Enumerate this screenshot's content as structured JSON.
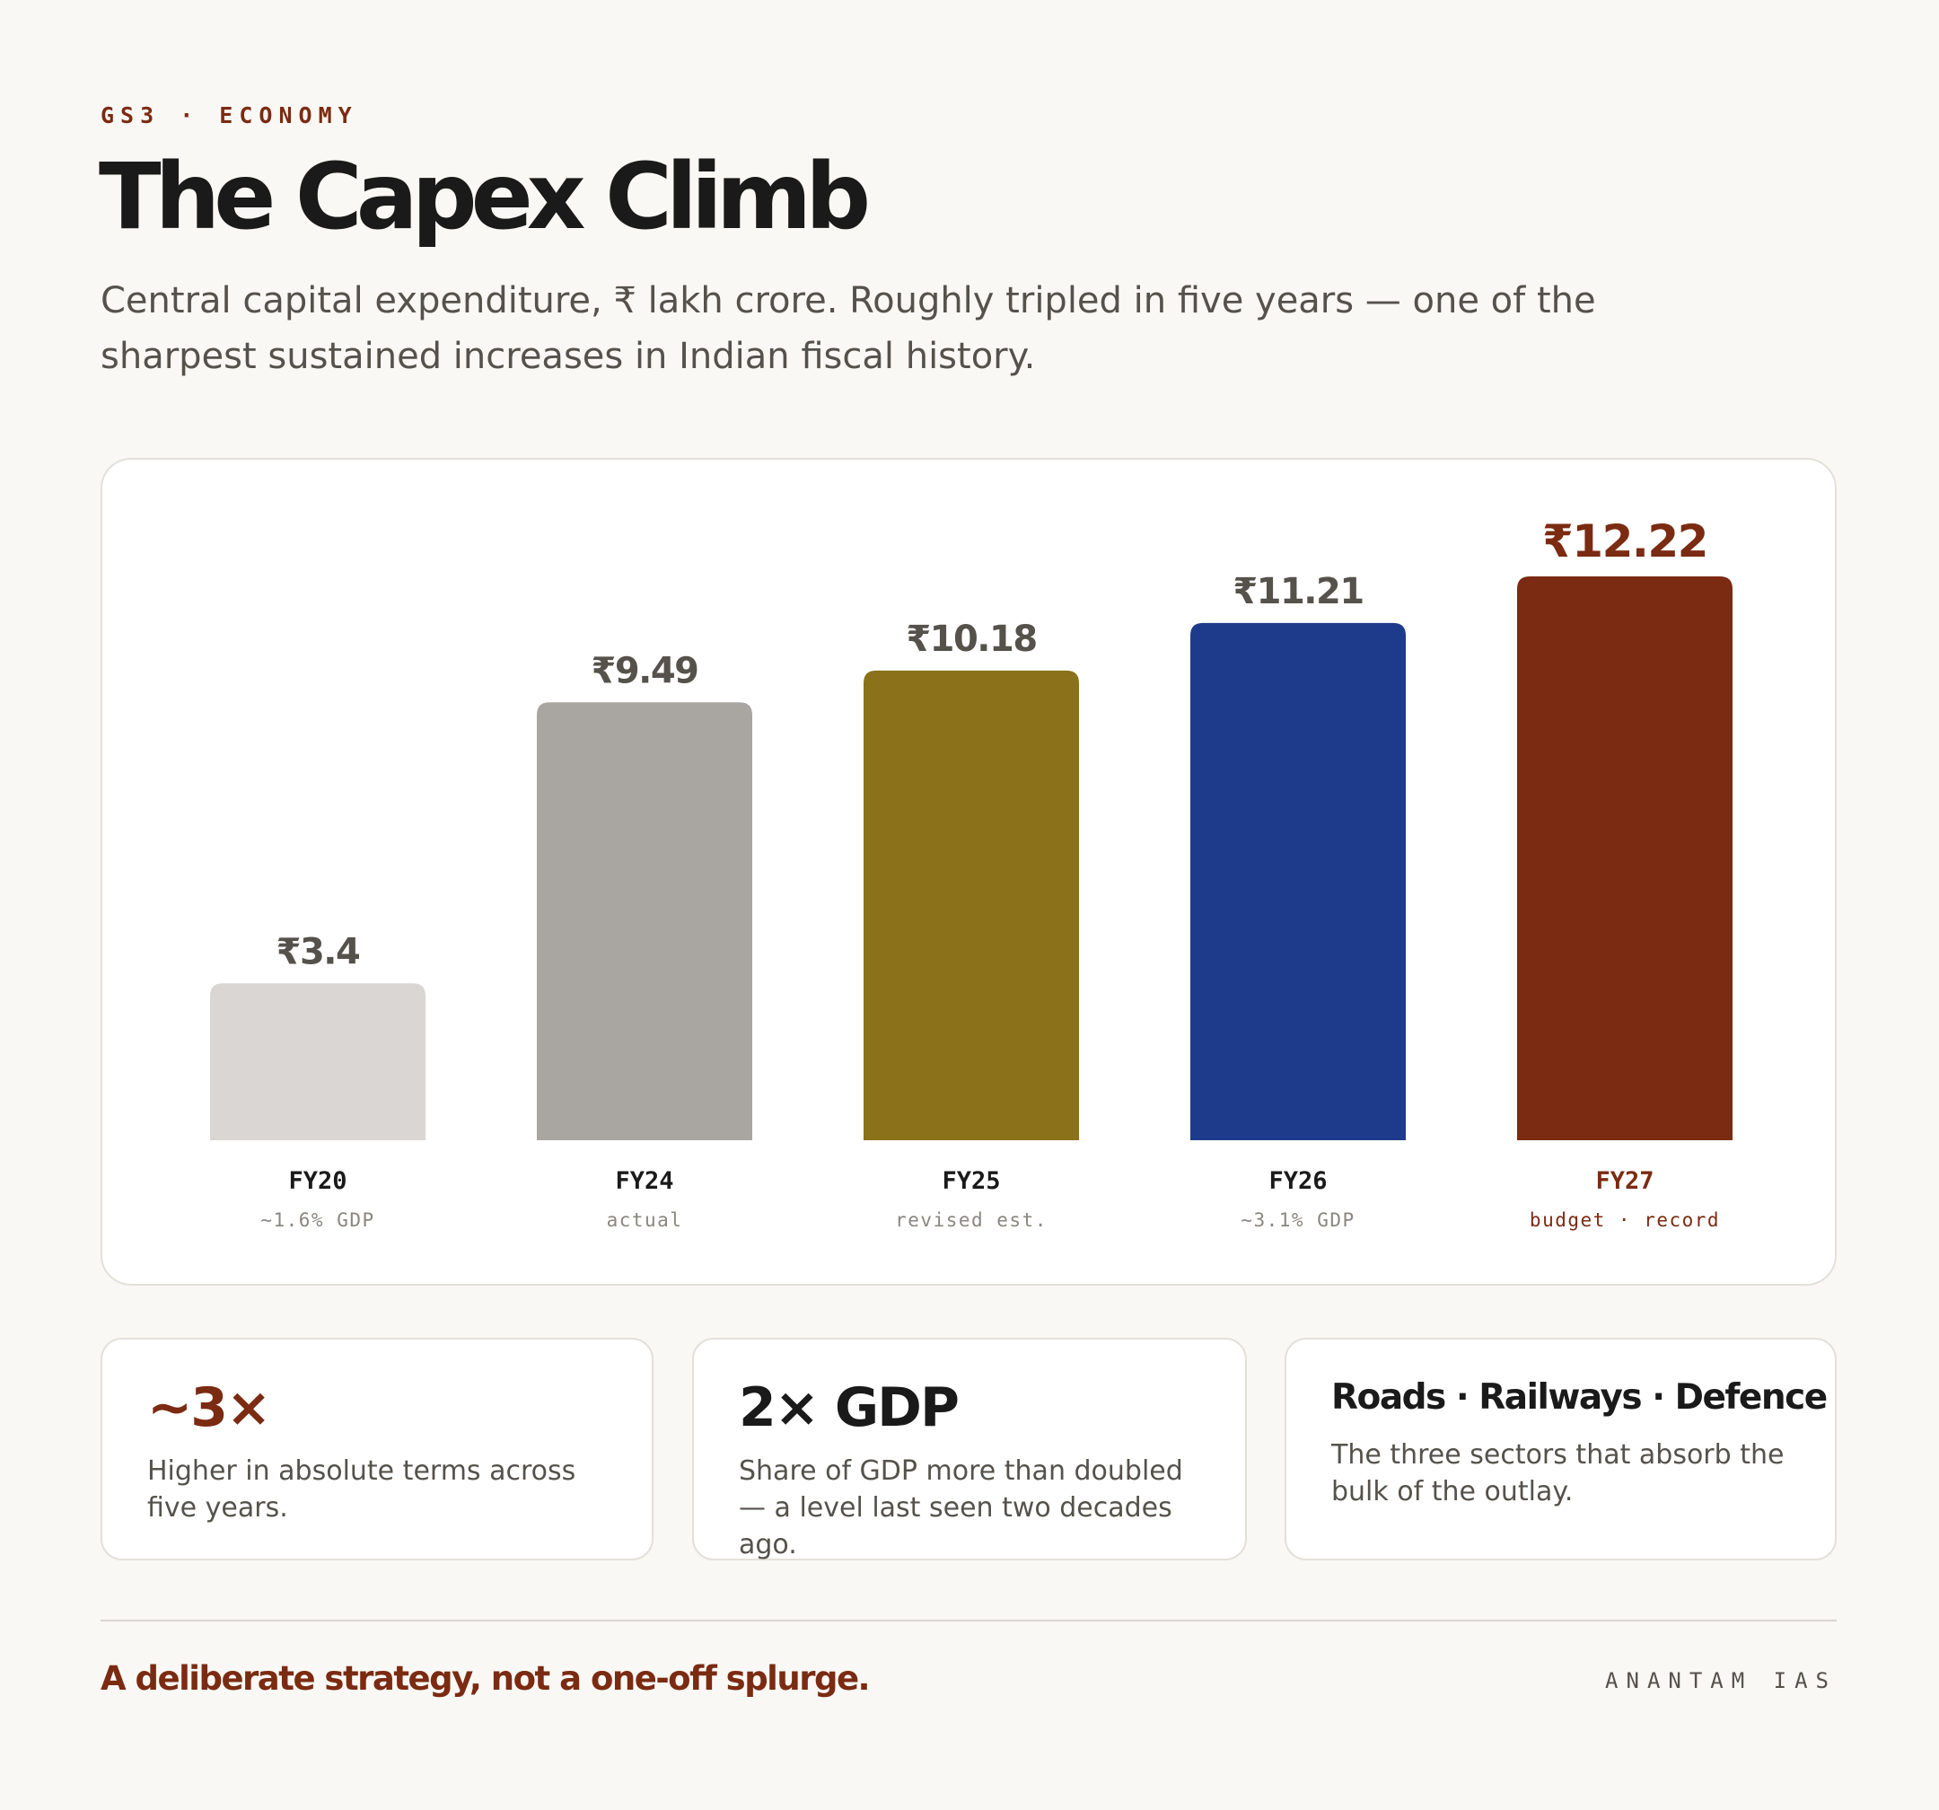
{
  "header": {
    "kicker": "GS3 · ECONOMY",
    "title": "The Capex Climb",
    "subtitle": "Central capital expenditure, ₹ lakh crore. Roughly tripled in five years — one of the sharpest sustained increases in Indian fiscal history."
  },
  "chart_data": {
    "type": "bar",
    "categories": [
      "FY20",
      "FY24",
      "FY25",
      "FY26",
      "FY27"
    ],
    "values": [
      3.4,
      9.49,
      10.18,
      11.21,
      12.22
    ],
    "value_labels": [
      "₹3.4",
      "₹9.49",
      "₹10.18",
      "₹11.21",
      "₹12.22"
    ],
    "notes": [
      "~1.6% GDP",
      "actual",
      "revised est.",
      "~3.1% GDP",
      "budget · record"
    ],
    "colors": [
      "#d9d6d3",
      "#a9a5a1",
      "#8b7119",
      "#1e3a8a",
      "#7b2b12"
    ],
    "highlight_index": 4,
    "highlight_color": "#7b2b12",
    "title": "",
    "xlabel": "",
    "ylabel": "",
    "grid": false,
    "legend": "none"
  },
  "stats": [
    {
      "big": "~3×",
      "text": "Higher in absolute terms across five years."
    },
    {
      "big": "2× GDP",
      "text": "Share of GDP more than doubled — a level last seen two decades ago."
    },
    {
      "big": "Roads · Railways · Defence",
      "text": "The three sectors that absorb the bulk of the outlay."
    }
  ],
  "footer": {
    "tagline": "A deliberate strategy, not a one-off splurge.",
    "brand": "ANANTAM IAS"
  }
}
